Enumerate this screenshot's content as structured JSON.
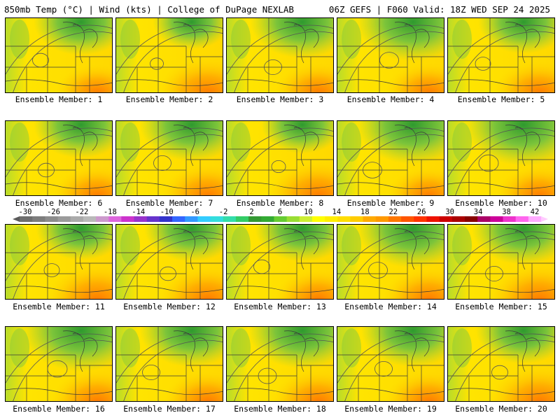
{
  "header": {
    "left": "850mb Temp (°C) | Wind (kts) | College of DuPage NEXLAB",
    "right": "06Z GEFS | F060 Valid: 18Z WED SEP 24 2025"
  },
  "members": [
    {
      "label": "Ensemble Member: 1",
      "green": 0.35,
      "orange": 0.35
    },
    {
      "label": "Ensemble Member: 2",
      "green": 0.15,
      "orange": 0.55
    },
    {
      "label": "Ensemble Member: 3",
      "green": 0.45,
      "orange": 0.4
    },
    {
      "label": "Ensemble Member: 4",
      "green": 0.55,
      "orange": 0.4
    },
    {
      "label": "Ensemble Member: 5",
      "green": 0.3,
      "orange": 0.45
    },
    {
      "label": "Ensemble Member: 6",
      "green": 0.35,
      "orange": 0.4
    },
    {
      "label": "Ensemble Member: 7",
      "green": 0.45,
      "orange": 0.45
    },
    {
      "label": "Ensemble Member: 8",
      "green": 0.2,
      "orange": 0.55
    },
    {
      "label": "Ensemble Member: 9",
      "green": 0.55,
      "orange": 0.35
    },
    {
      "label": "Ensemble Member: 10",
      "green": 0.6,
      "orange": 0.4
    },
    {
      "label": "Ensemble Member: 11",
      "green": 0.3,
      "orange": 0.55
    },
    {
      "label": "Ensemble Member: 12",
      "green": 0.35,
      "orange": 0.5
    },
    {
      "label": "Ensemble Member: 13",
      "green": 0.35,
      "orange": 0.4
    },
    {
      "label": "Ensemble Member: 14",
      "green": 0.55,
      "orange": 0.45
    },
    {
      "label": "Ensemble Member: 15",
      "green": 0.45,
      "orange": 0.55
    },
    {
      "label": "Ensemble Member: 16",
      "green": 0.6,
      "orange": 0.45
    },
    {
      "label": "Ensemble Member: 17",
      "green": 0.45,
      "orange": 0.4
    },
    {
      "label": "Ensemble Member: 18",
      "green": 0.5,
      "orange": 0.45
    },
    {
      "label": "Ensemble Member: 19",
      "green": 0.45,
      "orange": 0.4
    },
    {
      "label": "Ensemble Member: 20",
      "green": 0.35,
      "orange": 0.55
    }
  ],
  "colorbar": {
    "ticks": [
      "-30",
      "-26",
      "-22",
      "-18",
      "-14",
      "-10",
      "-6",
      "-2",
      "2",
      "6",
      "10",
      "14",
      "18",
      "22",
      "26",
      "30",
      "34",
      "38",
      "42"
    ],
    "colors": [
      "#6e6e6e",
      "#7d7d7d",
      "#8c8c8c",
      "#9b9b9b",
      "#aaaaaa",
      "#b9b9b9",
      "#cc99cc",
      "#dd66dd",
      "#cc33cc",
      "#9933cc",
      "#6633cc",
      "#3333cc",
      "#3366ff",
      "#3399ff",
      "#33ccff",
      "#33dddd",
      "#33ddaa",
      "#33cc66",
      "#339933",
      "#33aa33",
      "#66cc33",
      "#99dd33",
      "#ccee33",
      "#ffff00",
      "#ffee00",
      "#ffdd00",
      "#ffcc00",
      "#ffaa00",
      "#ff9900",
      "#ff7700",
      "#ff5500",
      "#ff3300",
      "#ee1100",
      "#cc0000",
      "#aa0000",
      "#880000",
      "#aa0066",
      "#cc0099",
      "#ee33cc",
      "#ff66ee",
      "#ffaaff"
    ]
  }
}
